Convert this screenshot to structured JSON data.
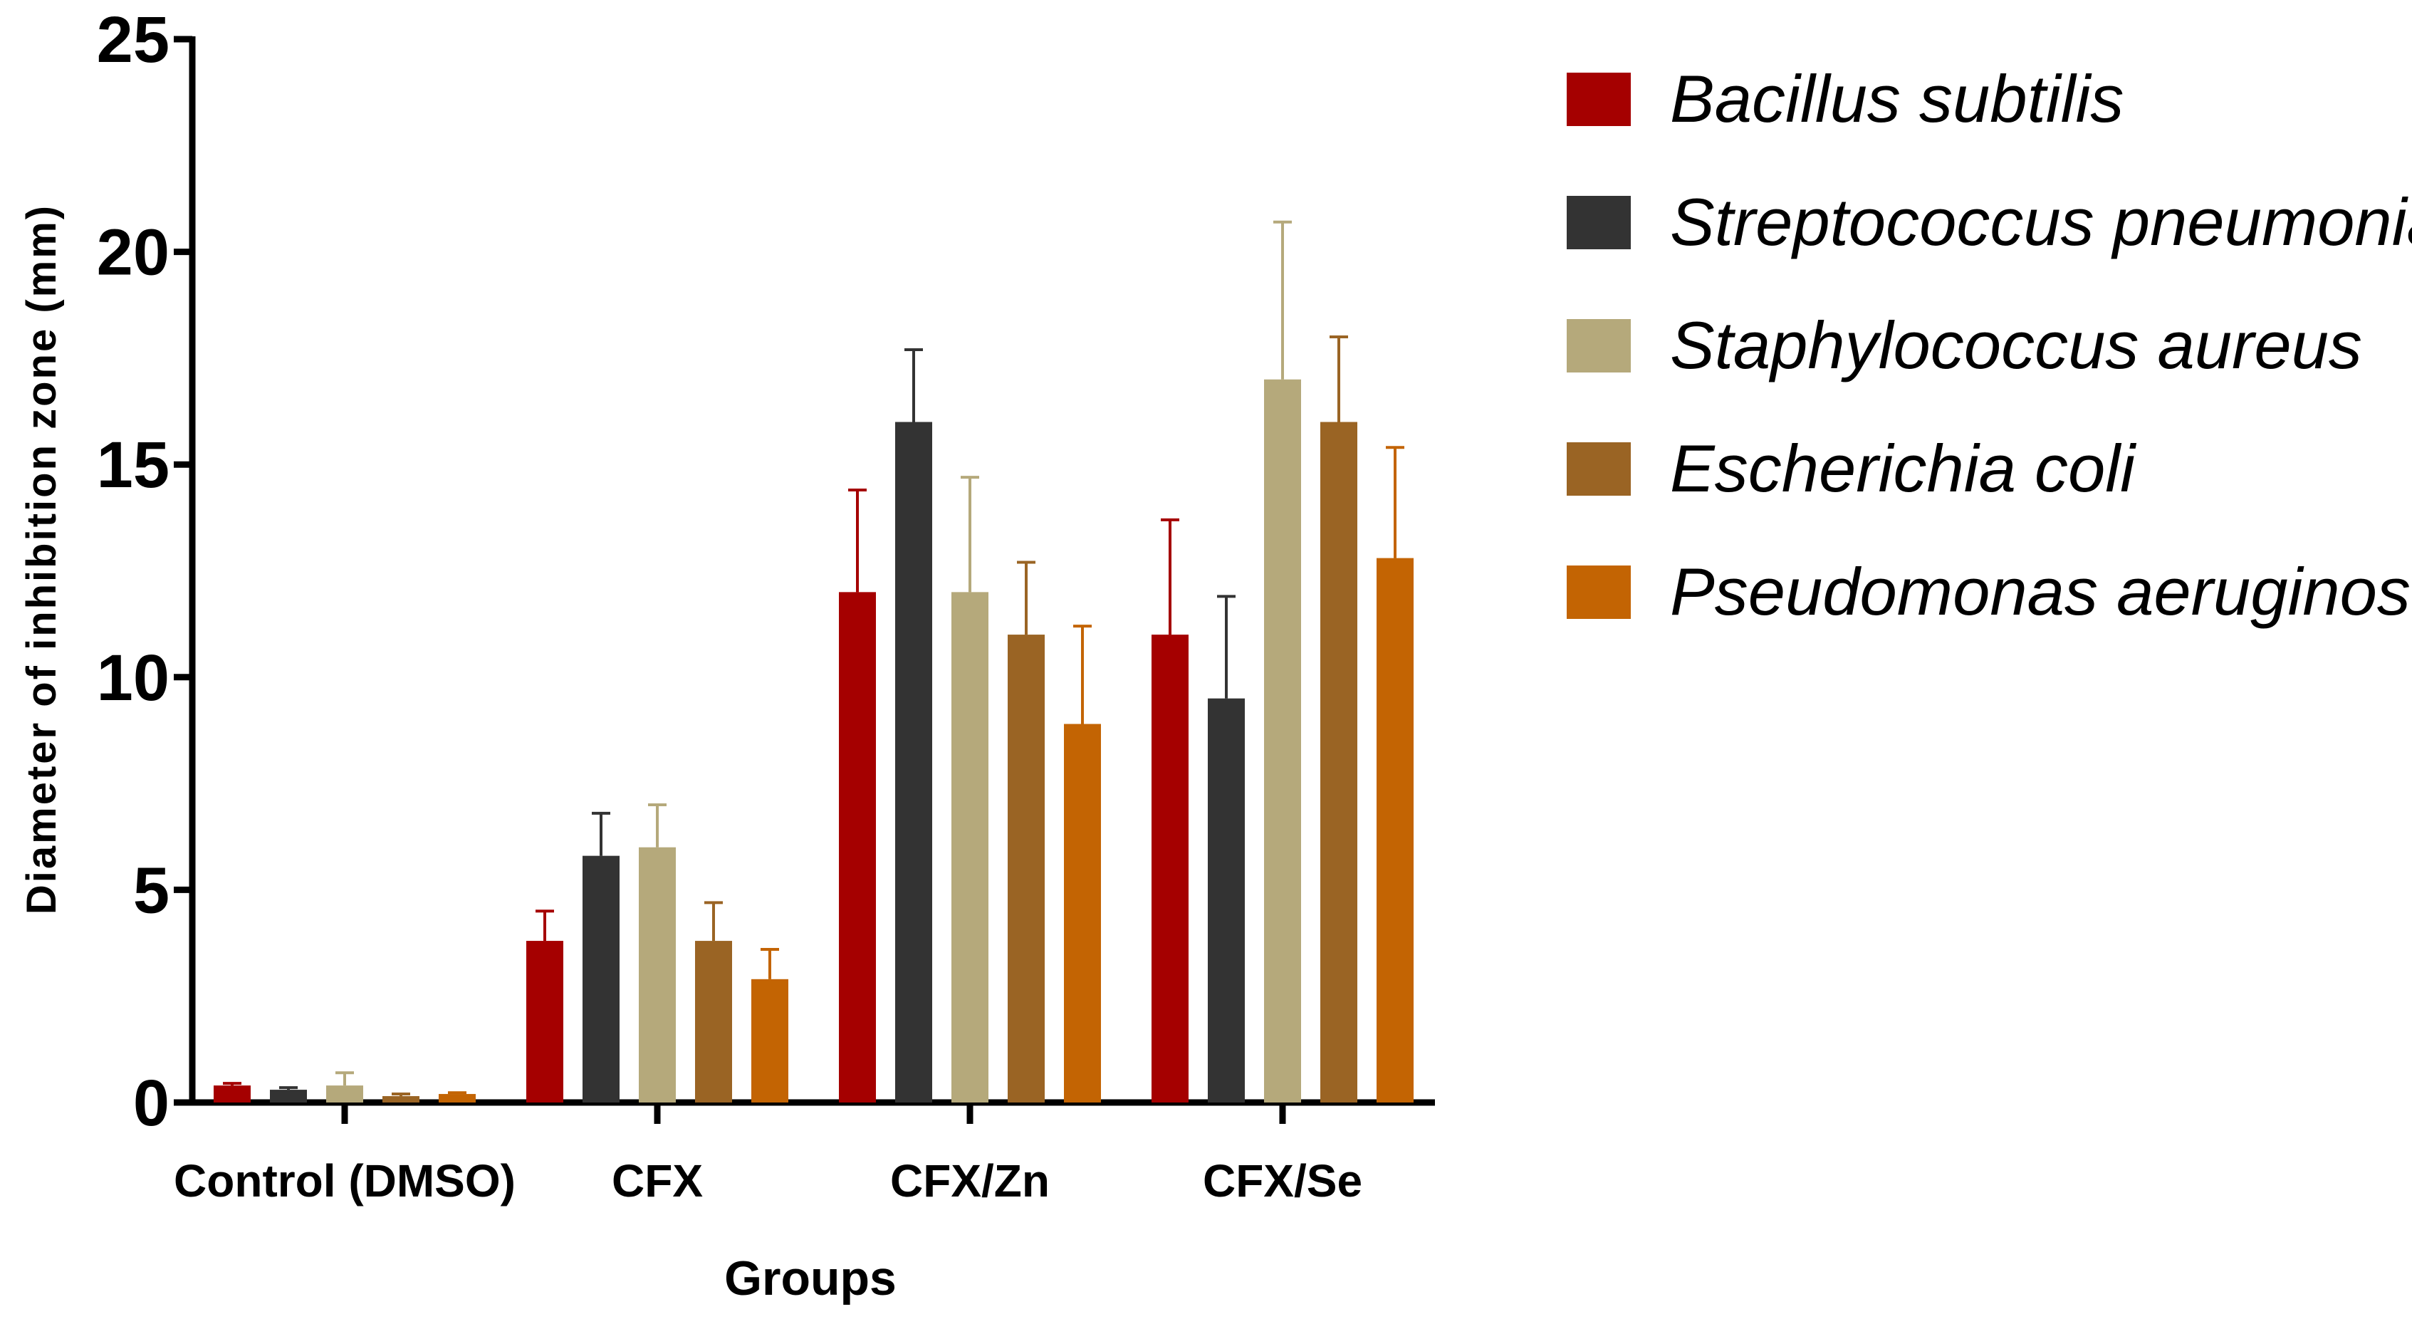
{
  "chart_data": {
    "type": "bar",
    "title": "",
    "xlabel": "Groups",
    "ylabel": "Diameter of inhibition zone (mm)",
    "ylim": [
      0,
      25
    ],
    "yticks": [
      "0",
      "5",
      "10",
      "15",
      "20",
      "25"
    ],
    "ytick_values": [
      0,
      5,
      10,
      15,
      20,
      25
    ],
    "categories": [
      "Control (DMSO)",
      "CFX",
      "CFX/Zn",
      "CFX/Se"
    ],
    "legend_position": "right",
    "error_bars": "positive",
    "series": [
      {
        "name": "Bacillus subtilis",
        "color": "#a50000",
        "values": [
          0.4,
          3.8,
          12.0,
          11.0
        ],
        "errors": [
          0.05,
          0.7,
          2.4,
          2.7
        ]
      },
      {
        "name": "Streptococcus pneumoniae",
        "color": "#333333",
        "values": [
          0.3,
          5.8,
          16.0,
          9.5
        ],
        "errors": [
          0.05,
          1.0,
          1.7,
          2.4
        ]
      },
      {
        "name": "Staphylococcus aureus",
        "color": "#b5a97b",
        "values": [
          0.4,
          6.0,
          12.0,
          17.0
        ],
        "errors": [
          0.3,
          1.0,
          2.7,
          3.7
        ]
      },
      {
        "name": "Escherichia coli",
        "color": "#9a6424",
        "values": [
          0.15,
          3.8,
          11.0,
          16.0
        ],
        "errors": [
          0.05,
          0.9,
          1.7,
          2.0
        ]
      },
      {
        "name": "Pseudomonas aeruginosa",
        "color": "#c36403",
        "values": [
          0.2,
          2.9,
          8.9,
          12.8
        ],
        "errors": [
          0.03,
          0.7,
          2.3,
          2.6
        ]
      }
    ]
  }
}
